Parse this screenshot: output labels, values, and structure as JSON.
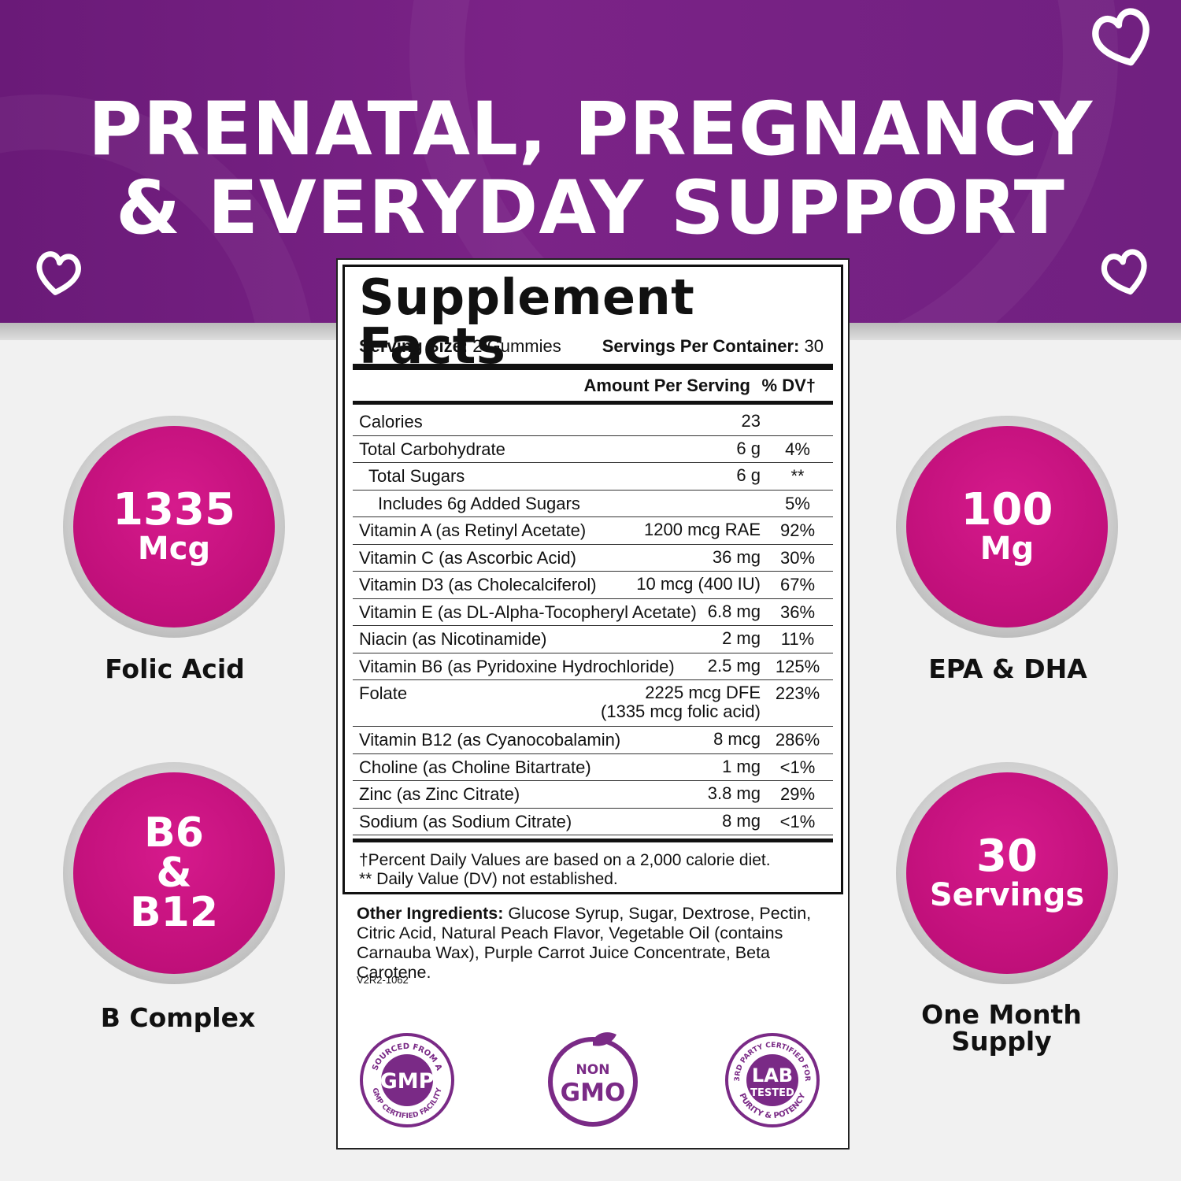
{
  "headline": {
    "line1": "PRENATAL, PREGNANCY",
    "line2": "& EVERYDAY SUPPORT"
  },
  "colors": {
    "banner": "#72207f",
    "badge": "#c8127f",
    "seal": "#7a2a86"
  },
  "badges": {
    "folic": {
      "value": "1335",
      "unit": "Mcg",
      "caption": "Folic Acid"
    },
    "epa": {
      "value": "100",
      "unit": "Mg",
      "caption": "EPA & DHA"
    },
    "bcomplex": {
      "line1": "B6",
      "line2": "&",
      "line3": "B12",
      "caption": "B Complex"
    },
    "servings": {
      "value": "30",
      "unit": "Servings",
      "caption_line1": "One Month",
      "caption_line2": "Supply"
    }
  },
  "facts": {
    "title": "Supplement Facts",
    "serving_size_label": "Serving Size:",
    "serving_size": "2 Gummies",
    "servings_label": "Servings Per Container:",
    "servings": "30",
    "amount_header": "Amount Per Serving",
    "dv_header": "% DV†",
    "rows": [
      {
        "name": "Calories",
        "amount": "23",
        "dv": ""
      },
      {
        "name": "Total Carbohydrate",
        "amount": "6 g",
        "dv": "4%"
      },
      {
        "name": "Total Sugars",
        "amount": "6 g",
        "dv": "**"
      },
      {
        "name": "Includes 6g Added Sugars",
        "amount": "",
        "dv": "5%"
      },
      {
        "name": "Vitamin A (as Retinyl Acetate)",
        "amount": "1200 mcg RAE",
        "dv": "92%"
      },
      {
        "name": "Vitamin C (as Ascorbic Acid)",
        "amount": "36 mg",
        "dv": "30%"
      },
      {
        "name": "Vitamin D3 (as Cholecalciferol)",
        "amount": "10 mcg (400 IU)",
        "dv": "67%"
      },
      {
        "name": "Vitamin E (as DL-Alpha-Tocopheryl Acetate)",
        "amount": "6.8 mg",
        "dv": "36%"
      },
      {
        "name": "Niacin (as Nicotinamide)",
        "amount": "2 mg",
        "dv": "11%"
      },
      {
        "name": "Vitamin B6 (as Pyridoxine Hydrochloride)",
        "amount": "2.5 mg",
        "dv": "125%"
      },
      {
        "name": "Folate",
        "amount": "2225 mcg DFE",
        "amount2": "(1335 mcg folic acid)",
        "dv": "223%"
      },
      {
        "name": "Vitamin B12 (as Cyanocobalamin)",
        "amount": "8 mcg",
        "dv": "286%"
      },
      {
        "name": "Choline (as Choline Bitartrate)",
        "amount": "1 mg",
        "dv": "<1%"
      },
      {
        "name": "Zinc (as Zinc Citrate)",
        "amount": "3.8 mg",
        "dv": "29%"
      },
      {
        "name": "Sodium (as Sodium Citrate)",
        "amount": "8 mg",
        "dv": "<1%"
      }
    ],
    "footnote1": "†Percent Daily Values are based on a 2,000 calorie diet.",
    "footnote2": "** Daily Value (DV) not established."
  },
  "ingredients": {
    "label": "Other Ingredients:",
    "text": " Glucose Syrup, Sugar, Dextrose, Pectin, Citric Acid, Natural Peach Flavor, Vegetable Oil (contains Carnauba Wax), Purple Carrot Juice Concentrate, Beta Carotene."
  },
  "lot_code": "V2R2-1062",
  "seals": {
    "gmp": {
      "main": "GMP",
      "ring_top": "SOURCED FROM A",
      "ring_bottom": "GMP CERTIFIED FACILITY"
    },
    "nongmo": {
      "top": "NON",
      "main": "GMO"
    },
    "lab": {
      "main1": "LAB",
      "main2": "TESTED",
      "ring_top": "3RD PARTY CERTIFIED FOR",
      "ring_bottom": "PURITY & POTENCY"
    }
  }
}
